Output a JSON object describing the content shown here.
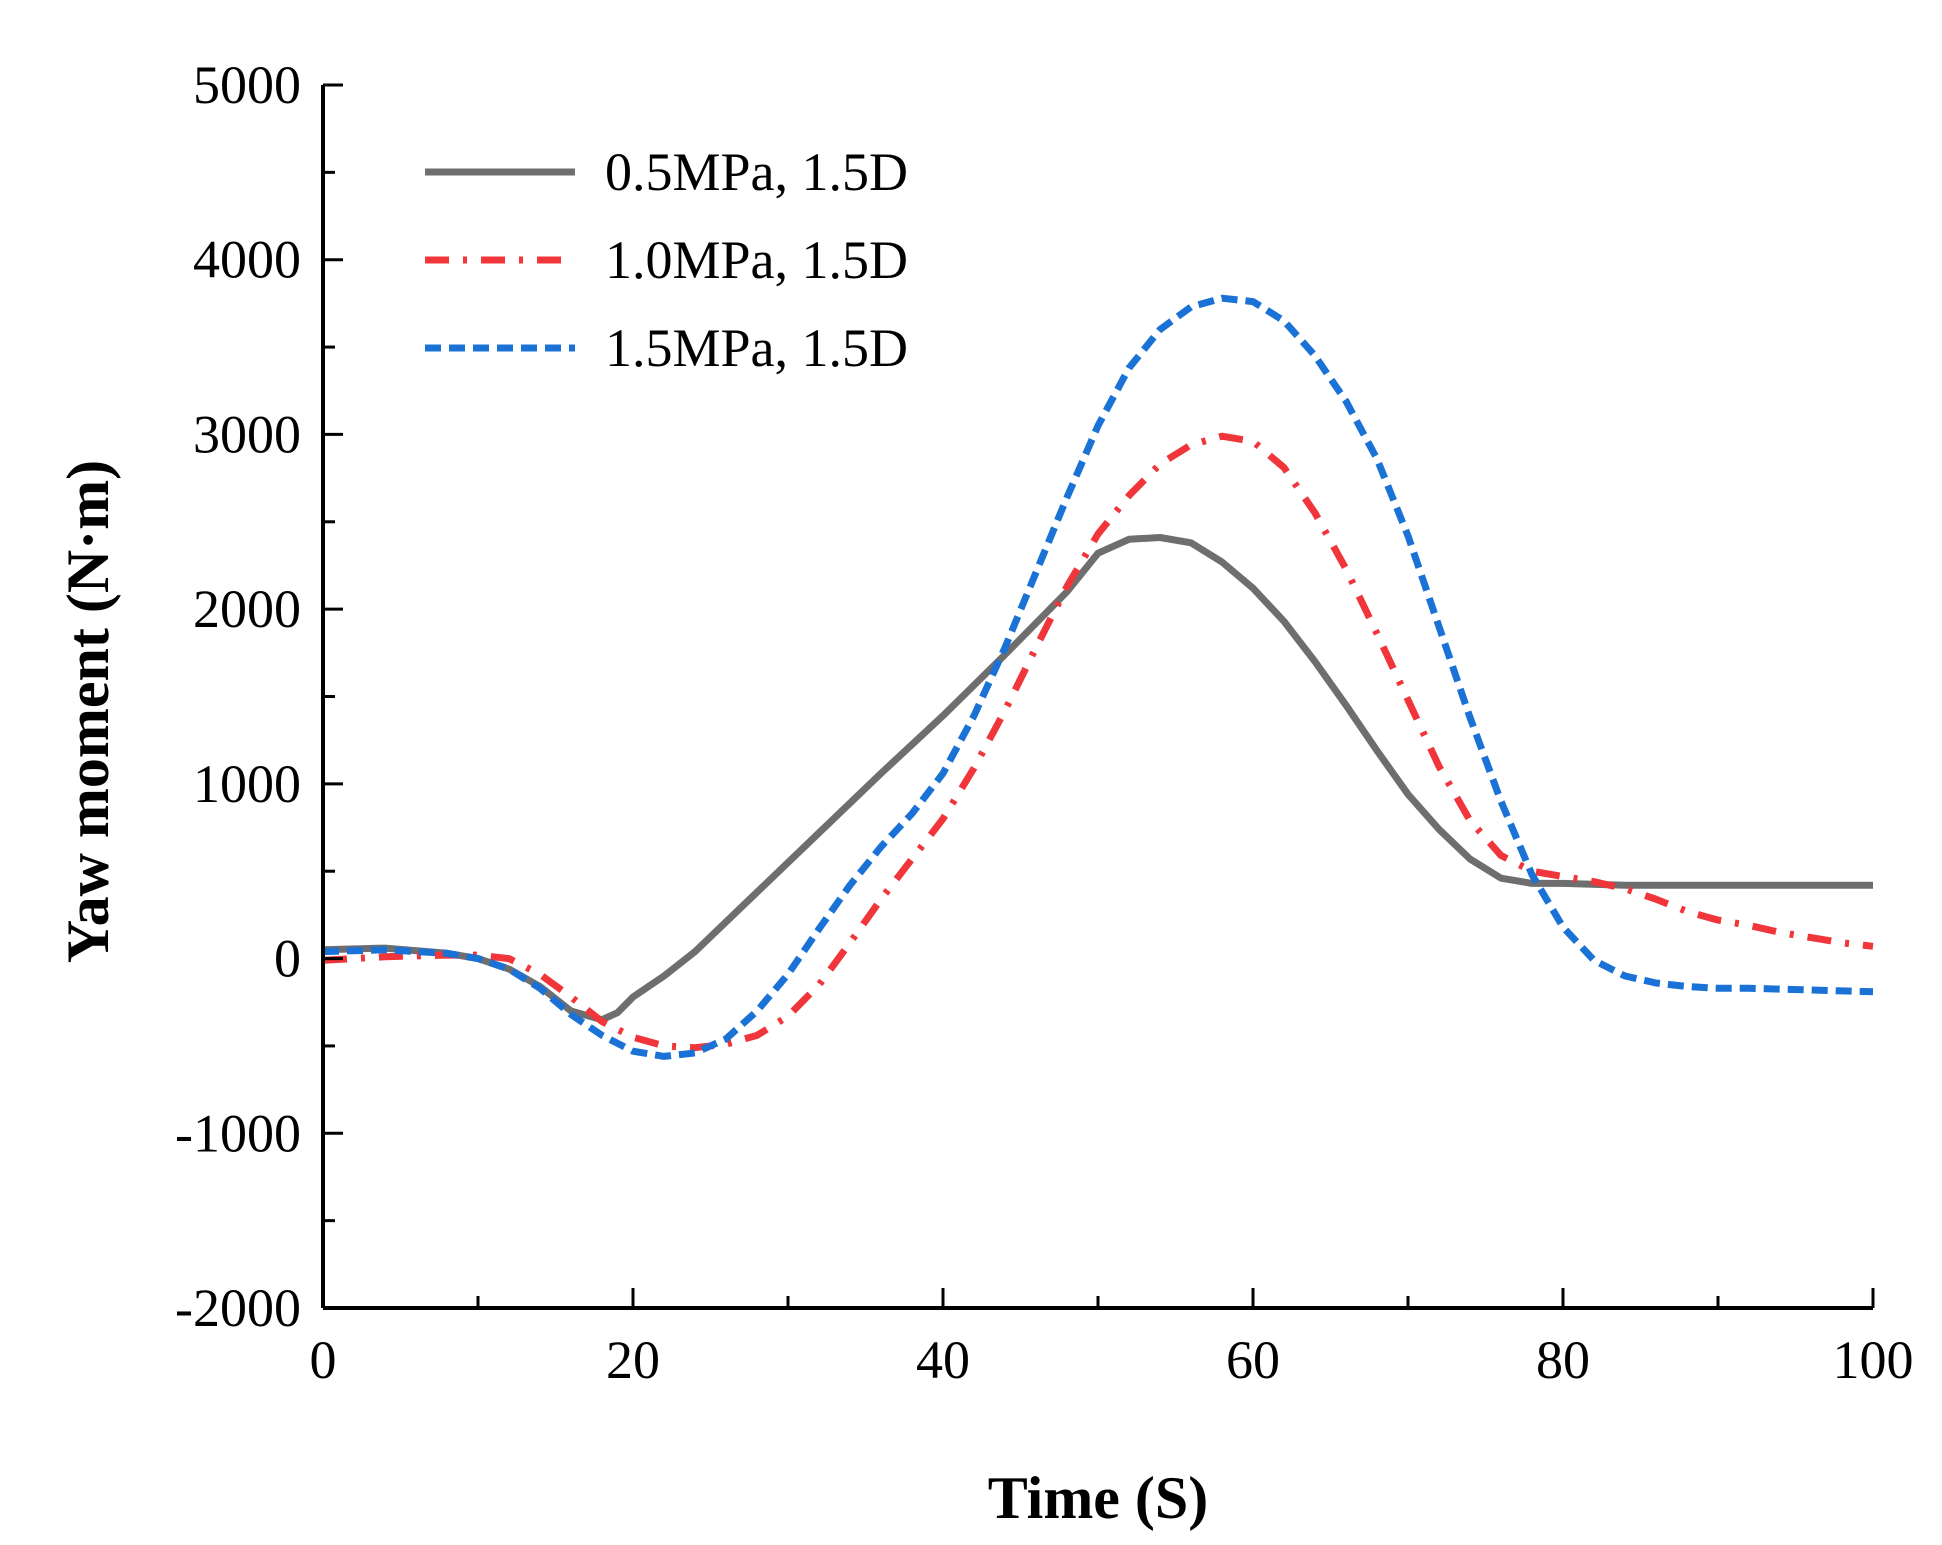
{
  "chart_data": {
    "type": "line",
    "title": "",
    "xlabel": "Time (S)",
    "ylabel": "Yaw moment (N·m)",
    "xlim": [
      0,
      100
    ],
    "ylim": [
      -2000,
      5000
    ],
    "xticks": [
      0,
      20,
      40,
      60,
      80,
      100
    ],
    "yticks": [
      -2000,
      -1000,
      0,
      1000,
      2000,
      3000,
      4000,
      5000
    ],
    "grid": false,
    "legend_position": "top-left",
    "series": [
      {
        "name": "0.5MPa, 1.5D",
        "color": "#6e6e6e",
        "style": "solid",
        "x": [
          0,
          4,
          8,
          10,
          12,
          14,
          16,
          18,
          19,
          20,
          22,
          24,
          28,
          32,
          36,
          40,
          44,
          48,
          50,
          52,
          54,
          56,
          58,
          60,
          62,
          64,
          66,
          68,
          70,
          72,
          74,
          76,
          78,
          80,
          84,
          88,
          92,
          96,
          100
        ],
        "y": [
          50,
          60,
          30,
          0,
          -60,
          -160,
          -300,
          -350,
          -310,
          -220,
          -100,
          40,
          380,
          720,
          1060,
          1390,
          1740,
          2100,
          2320,
          2400,
          2410,
          2380,
          2270,
          2120,
          1930,
          1700,
          1450,
          1190,
          940,
          740,
          570,
          460,
          430,
          430,
          420,
          420,
          420,
          420,
          420
        ]
      },
      {
        "name": "1.0MPa, 1.5D",
        "color": "#f0363a",
        "style": "dashdot",
        "x": [
          0,
          4,
          8,
          10,
          12,
          14,
          16,
          18,
          20,
          22,
          24,
          26,
          28,
          30,
          32,
          34,
          36,
          38,
          40,
          42,
          44,
          46,
          48,
          50,
          52,
          54,
          56,
          58,
          60,
          62,
          64,
          66,
          68,
          70,
          72,
          74,
          76,
          78,
          80,
          82,
          84,
          86,
          88,
          90,
          92,
          94,
          96,
          98,
          100
        ],
        "y": [
          -10,
          10,
          20,
          20,
          0,
          -90,
          -220,
          -360,
          -450,
          -500,
          -510,
          -490,
          -440,
          -330,
          -150,
          90,
          340,
          570,
          800,
          1090,
          1420,
          1780,
          2130,
          2430,
          2650,
          2830,
          2940,
          2990,
          2960,
          2810,
          2550,
          2230,
          1860,
          1480,
          1100,
          790,
          590,
          500,
          470,
          440,
          400,
          340,
          270,
          220,
          190,
          150,
          120,
          90,
          70
        ]
      },
      {
        "name": "1.5MPa, 1.5D",
        "color": "#1a72d6",
        "style": "dashed",
        "x": [
          0,
          4,
          8,
          10,
          12,
          14,
          16,
          18,
          20,
          22,
          24,
          26,
          28,
          30,
          32,
          34,
          36,
          38,
          40,
          42,
          44,
          46,
          48,
          50,
          52,
          54,
          56,
          58,
          60,
          62,
          64,
          66,
          68,
          70,
          72,
          74,
          76,
          78,
          80,
          82,
          84,
          86,
          88,
          90,
          92,
          94,
          96,
          98,
          100
        ],
        "y": [
          40,
          50,
          30,
          0,
          -60,
          -170,
          -320,
          -440,
          -530,
          -560,
          -540,
          -460,
          -300,
          -90,
          170,
          420,
          640,
          830,
          1060,
          1390,
          1780,
          2210,
          2640,
          3050,
          3380,
          3600,
          3730,
          3780,
          3760,
          3650,
          3450,
          3190,
          2860,
          2420,
          1900,
          1380,
          900,
          480,
          180,
          -10,
          -100,
          -140,
          -160,
          -170,
          -170,
          -175,
          -180,
          -185,
          -190
        ]
      }
    ]
  }
}
